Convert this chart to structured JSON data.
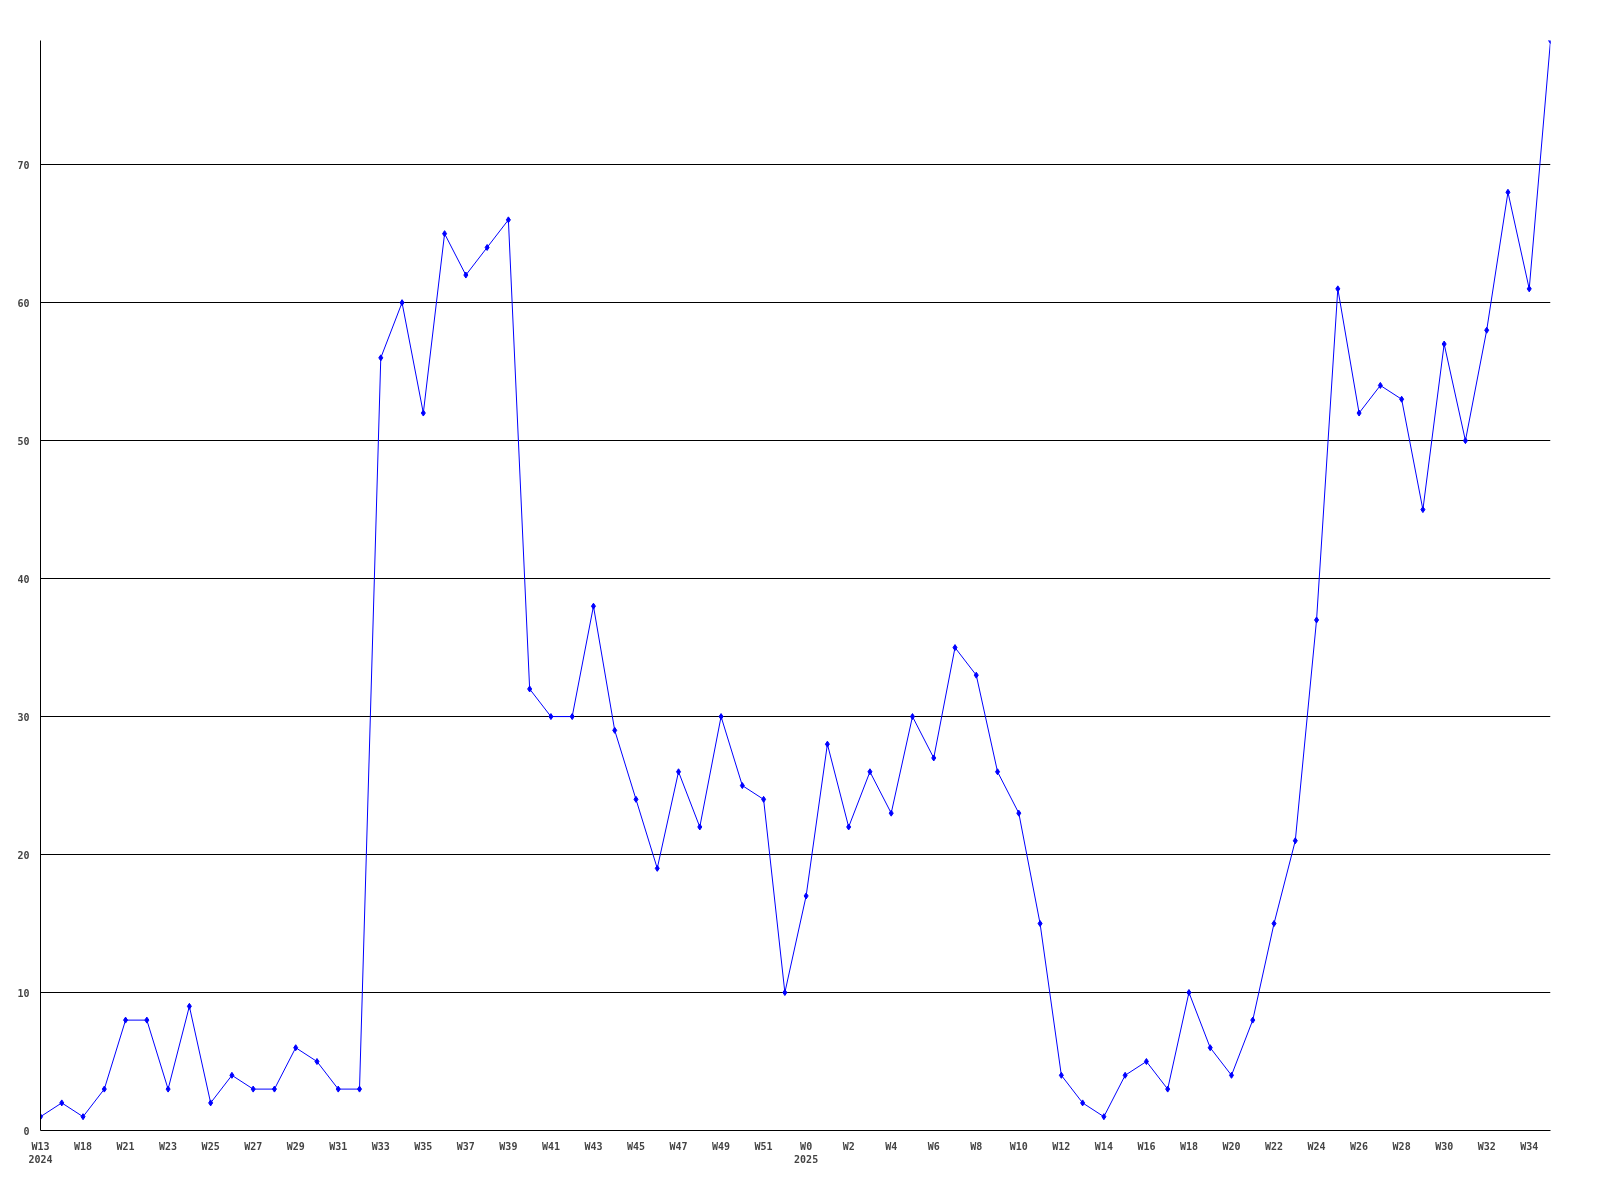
{
  "chart_data": {
    "type": "line",
    "categories": [
      "W13\n2024",
      null,
      "W18",
      null,
      "W21",
      null,
      "W23",
      null,
      "W25",
      null,
      "W27",
      null,
      "W29",
      null,
      "W31",
      null,
      "W33",
      null,
      "W35",
      null,
      "W37",
      null,
      "W39",
      null,
      "W41",
      null,
      "W43",
      null,
      "W45",
      null,
      "W47",
      null,
      "W49",
      null,
      "W51",
      null,
      "W0\n2025",
      null,
      "W2",
      null,
      "W4",
      null,
      "W6",
      null,
      "W8",
      null,
      "W10",
      null,
      "W12",
      null,
      "W14",
      null,
      "W16",
      null,
      "W18",
      null,
      "W20",
      null,
      "W22",
      null,
      "W24",
      null,
      "W26",
      null,
      "W28",
      null,
      "W30",
      null,
      "W32",
      null,
      "W34",
      null
    ],
    "series": [
      {
        "color": "#0000ff",
        "values": [
          1,
          2,
          1,
          3,
          8,
          8,
          3,
          9,
          2,
          4,
          3,
          3,
          6,
          5,
          3,
          3,
          56,
          60,
          52,
          65,
          62,
          64,
          66,
          32,
          30,
          30,
          38,
          29,
          24,
          19,
          26,
          22,
          30,
          25,
          24,
          10,
          17,
          28,
          22,
          26,
          23,
          30,
          27,
          35,
          33,
          26,
          23,
          15,
          4,
          2,
          1,
          4,
          5,
          3,
          10,
          6,
          4,
          8,
          15,
          21,
          37,
          61,
          52,
          54,
          53,
          45,
          57,
          50,
          58,
          68,
          61,
          79
        ]
      }
    ],
    "ylim": [
      0,
      79
    ],
    "yticks": [
      0,
      10,
      20,
      30,
      40,
      50,
      60,
      70
    ],
    "grid": "y",
    "marker": "diamond",
    "line_style": "solid"
  }
}
